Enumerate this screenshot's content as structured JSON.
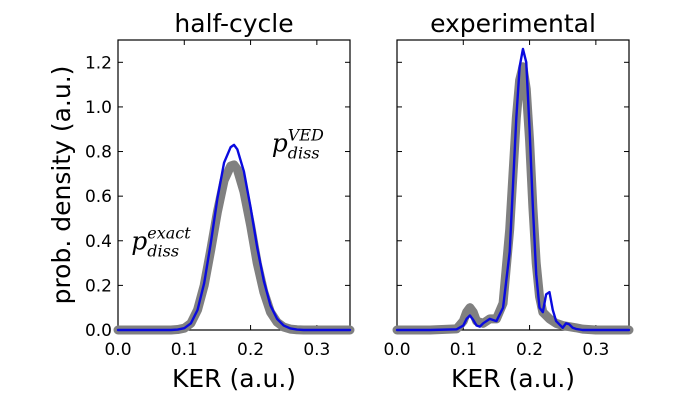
{
  "figure": {
    "ylabel": "prob. density (a.u.)",
    "colors": {
      "exact": "#808080",
      "ved": "#0a0adf"
    }
  },
  "chart_data": [
    {
      "type": "line",
      "title": "half-cycle",
      "xlabel": "KER (a.u.)",
      "ylabel": "prob. density (a.u.)",
      "xlim": [
        0.0,
        0.35
      ],
      "ylim": [
        0.0,
        1.3
      ],
      "xticks": [
        "0.0",
        "0.1",
        "0.2",
        "0.3"
      ],
      "yticks": [
        "0.0",
        "0.2",
        "0.4",
        "0.6",
        "0.8",
        "1.0",
        "1.2"
      ],
      "grid": false,
      "annotations": [
        {
          "base": "p",
          "sub": "diss",
          "sup": "exact",
          "color": "exact",
          "at": [
            0.02,
            0.36
          ]
        },
        {
          "base": "p",
          "sub": "diss",
          "sup": "VED",
          "color": "ved",
          "at": [
            0.232,
            0.8
          ]
        }
      ],
      "series": [
        {
          "key": "exact",
          "x": [
            0.0,
            0.02,
            0.04,
            0.06,
            0.08,
            0.09,
            0.1,
            0.11,
            0.12,
            0.13,
            0.14,
            0.15,
            0.16,
            0.17,
            0.175,
            0.18,
            0.19,
            0.2,
            0.21,
            0.22,
            0.23,
            0.24,
            0.25,
            0.26,
            0.27,
            0.28,
            0.3,
            0.32,
            0.35
          ],
          "y": [
            0.0,
            0.0,
            0.0,
            0.0,
            0.0,
            0.002,
            0.008,
            0.03,
            0.09,
            0.2,
            0.36,
            0.53,
            0.67,
            0.735,
            0.74,
            0.72,
            0.62,
            0.47,
            0.3,
            0.17,
            0.08,
            0.035,
            0.013,
            0.004,
            0.001,
            0.0,
            0.0,
            0.0,
            0.0
          ]
        },
        {
          "key": "ved",
          "x": [
            0.0,
            0.02,
            0.04,
            0.06,
            0.08,
            0.09,
            0.1,
            0.11,
            0.12,
            0.13,
            0.14,
            0.15,
            0.16,
            0.17,
            0.175,
            0.18,
            0.19,
            0.2,
            0.21,
            0.22,
            0.23,
            0.24,
            0.25,
            0.26,
            0.27,
            0.28,
            0.3,
            0.32,
            0.35
          ],
          "y": [
            0.0,
            0.0,
            0.0,
            0.0,
            0.0,
            0.002,
            0.008,
            0.03,
            0.09,
            0.21,
            0.39,
            0.59,
            0.75,
            0.82,
            0.83,
            0.81,
            0.71,
            0.55,
            0.37,
            0.22,
            0.11,
            0.05,
            0.02,
            0.007,
            0.002,
            0.0,
            0.0,
            0.0,
            0.0
          ]
        }
      ]
    },
    {
      "type": "line",
      "title": "experimental",
      "xlabel": "KER (a.u.)",
      "ylabel": "",
      "xlim": [
        0.0,
        0.35
      ],
      "ylim": [
        0.0,
        1.3
      ],
      "xticks": [
        "0.0",
        "0.1",
        "0.2",
        "0.3"
      ],
      "yticks": [],
      "grid": false,
      "annotations": [],
      "series": [
        {
          "key": "exact",
          "x": [
            0.0,
            0.05,
            0.09,
            0.1,
            0.105,
            0.11,
            0.115,
            0.12,
            0.13,
            0.14,
            0.15,
            0.16,
            0.17,
            0.175,
            0.18,
            0.185,
            0.19,
            0.195,
            0.2,
            0.205,
            0.21,
            0.215,
            0.22,
            0.23,
            0.24,
            0.25,
            0.26,
            0.27,
            0.28,
            0.3,
            0.35
          ],
          "y": [
            0.0,
            0.0,
            0.005,
            0.04,
            0.08,
            0.1,
            0.08,
            0.04,
            0.03,
            0.05,
            0.05,
            0.12,
            0.45,
            0.7,
            0.95,
            1.12,
            1.18,
            1.08,
            0.85,
            0.55,
            0.3,
            0.15,
            0.08,
            0.05,
            0.03,
            0.02,
            0.015,
            0.01,
            0.004,
            0.0,
            0.0
          ]
        },
        {
          "key": "ved",
          "x": [
            0.0,
            0.05,
            0.09,
            0.1,
            0.105,
            0.11,
            0.115,
            0.12,
            0.125,
            0.13,
            0.14,
            0.15,
            0.16,
            0.17,
            0.175,
            0.18,
            0.185,
            0.19,
            0.195,
            0.2,
            0.205,
            0.21,
            0.215,
            0.22,
            0.225,
            0.23,
            0.235,
            0.24,
            0.25,
            0.255,
            0.26,
            0.265,
            0.27,
            0.28,
            0.3,
            0.35
          ],
          "y": [
            0.0,
            0.0,
            0.003,
            0.02,
            0.05,
            0.065,
            0.045,
            0.02,
            0.015,
            0.03,
            0.05,
            0.04,
            0.1,
            0.35,
            0.65,
            0.95,
            1.18,
            1.26,
            1.2,
            0.9,
            0.55,
            0.25,
            0.1,
            0.08,
            0.16,
            0.17,
            0.09,
            0.04,
            0.01,
            0.03,
            0.025,
            0.01,
            0.005,
            0.0,
            0.0,
            0.0
          ]
        }
      ]
    }
  ]
}
